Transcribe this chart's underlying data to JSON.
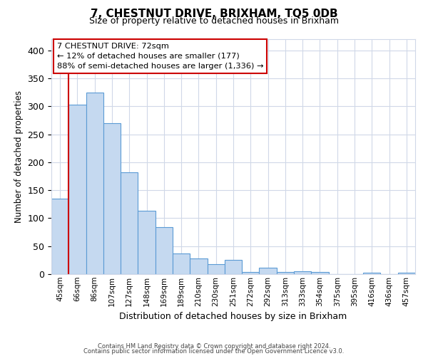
{
  "title": "7, CHESTNUT DRIVE, BRIXHAM, TQ5 0DB",
  "subtitle": "Size of property relative to detached houses in Brixham",
  "xlabel": "Distribution of detached houses by size in Brixham",
  "ylabel": "Number of detached properties",
  "bar_labels": [
    "45sqm",
    "66sqm",
    "86sqm",
    "107sqm",
    "127sqm",
    "148sqm",
    "169sqm",
    "189sqm",
    "210sqm",
    "230sqm",
    "251sqm",
    "272sqm",
    "292sqm",
    "313sqm",
    "333sqm",
    "354sqm",
    "375sqm",
    "395sqm",
    "416sqm",
    "436sqm",
    "457sqm"
  ],
  "bar_values": [
    135,
    303,
    325,
    270,
    182,
    113,
    84,
    37,
    28,
    18,
    25,
    4,
    11,
    4,
    5,
    4,
    0,
    0,
    3,
    0,
    3
  ],
  "bar_color": "#c5d9f0",
  "bar_edge_color": "#5b9bd5",
  "vline_x": 1,
  "vline_color": "#cc0000",
  "ylim": [
    0,
    420
  ],
  "yticks": [
    0,
    50,
    100,
    150,
    200,
    250,
    300,
    350,
    400
  ],
  "annotation_title": "7 CHESTNUT DRIVE: 72sqm",
  "annotation_line1": "← 12% of detached houses are smaller (177)",
  "annotation_line2": "88% of semi-detached houses are larger (1,336) →",
  "annotation_box_color": "#ffffff",
  "annotation_box_edge": "#cc0000",
  "footer1": "Contains HM Land Registry data © Crown copyright and database right 2024.",
  "footer2": "Contains public sector information licensed under the Open Government Licence v3.0.",
  "background_color": "#ffffff",
  "grid_color": "#d0d8e8",
  "fig_bg_color": "#ffffff"
}
